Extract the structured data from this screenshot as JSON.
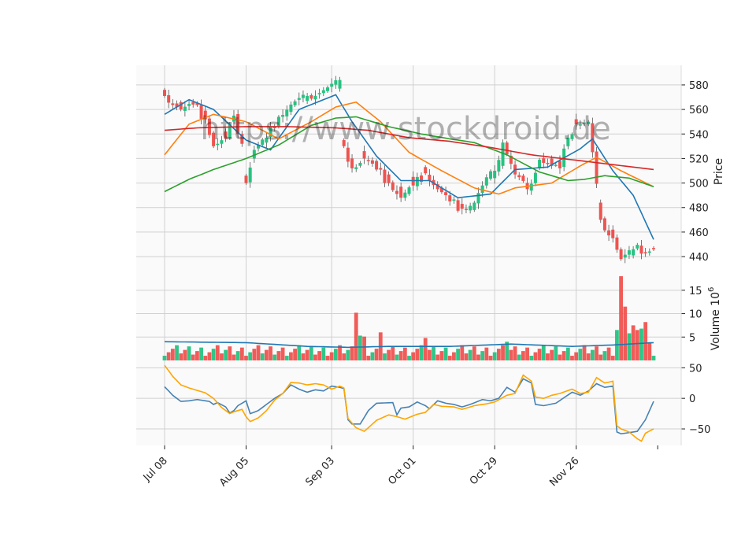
{
  "watermark": "https://www.stockdroid.de",
  "chart_data": {
    "type": "candlestick",
    "x_tick_labels": [
      "Jul 08",
      "Aug 05",
      "Sep 03",
      "Oct 01",
      "Oct 29",
      "Nov 26"
    ],
    "x_tick_bars": [
      0,
      20,
      41,
      61,
      81,
      101
    ],
    "n_bars": 121,
    "price_panel": {
      "ylabel": "Price",
      "ylim": [
        424,
        596
      ],
      "yticks": [
        440,
        460,
        480,
        500,
        520,
        540,
        560,
        580
      ],
      "ohlc_anchors": [
        [
          0,
          576,
          571
        ],
        [
          4,
          566,
          560
        ],
        [
          7,
          566,
          564
        ],
        [
          10,
          559,
          552
        ],
        [
          12,
          541,
          530
        ],
        [
          15,
          542,
          536
        ],
        [
          17,
          550,
          555
        ],
        [
          19,
          540,
          532
        ],
        [
          20,
          506,
          500
        ],
        [
          22,
          520,
          527
        ],
        [
          25,
          533,
          537
        ],
        [
          28,
          546,
          554
        ],
        [
          31,
          558,
          564
        ],
        [
          35,
          567,
          571
        ],
        [
          40,
          575,
          578
        ],
        [
          43,
          577,
          584
        ],
        [
          44,
          535,
          530
        ],
        [
          46,
          520,
          512
        ],
        [
          49,
          526,
          520
        ],
        [
          52,
          518,
          511
        ],
        [
          55,
          507,
          500
        ],
        [
          58,
          497,
          488
        ],
        [
          61,
          505,
          498
        ],
        [
          64,
          513,
          508
        ],
        [
          67,
          499,
          495
        ],
        [
          70,
          490,
          485
        ],
        [
          73,
          483,
          479
        ],
        [
          76,
          478,
          484
        ],
        [
          78,
          492,
          498
        ],
        [
          81,
          504,
          510
        ],
        [
          83,
          514,
          533
        ],
        [
          86,
          515,
          507
        ],
        [
          89,
          500,
          495
        ],
        [
          92,
          512,
          519
        ],
        [
          95,
          520,
          514
        ],
        [
          97,
          518,
          512
        ],
        [
          99,
          530,
          537
        ],
        [
          101,
          552,
          548
        ],
        [
          104,
          548,
          550
        ],
        [
          107,
          484,
          470
        ],
        [
          110,
          462,
          455
        ],
        [
          112,
          446,
          438
        ],
        [
          115,
          441,
          446
        ],
        [
          120,
          447,
          446
        ]
      ],
      "moving_averages": [
        {
          "color": "#1f77b4",
          "points": [
            [
              0,
              556
            ],
            [
              6,
              568
            ],
            [
              12,
              560
            ],
            [
              20,
              535
            ],
            [
              26,
              527
            ],
            [
              33,
              560
            ],
            [
              42,
              572
            ],
            [
              46,
              550
            ],
            [
              52,
              522
            ],
            [
              58,
              502
            ],
            [
              65,
              502
            ],
            [
              72,
              488
            ],
            [
              80,
              491
            ],
            [
              86,
              511
            ],
            [
              94,
              513
            ],
            [
              102,
              528
            ],
            [
              105,
              536
            ],
            [
              110,
              510
            ],
            [
              115,
              490
            ],
            [
              120,
              454
            ]
          ]
        },
        {
          "color": "#ff7f0e",
          "points": [
            [
              0,
              523
            ],
            [
              6,
              548
            ],
            [
              12,
              556
            ],
            [
              20,
              550
            ],
            [
              28,
              536
            ],
            [
              36,
              550
            ],
            [
              42,
              562
            ],
            [
              47,
              566
            ],
            [
              53,
              550
            ],
            [
              60,
              525
            ],
            [
              68,
              510
            ],
            [
              76,
              496
            ],
            [
              82,
              491
            ],
            [
              86,
              496
            ],
            [
              95,
              500
            ],
            [
              102,
              514
            ],
            [
              106,
              521
            ],
            [
              112,
              510
            ],
            [
              120,
              497
            ]
          ]
        },
        {
          "color": "#2ca02c",
          "points": [
            [
              0,
              493
            ],
            [
              6,
              503
            ],
            [
              12,
              511
            ],
            [
              20,
              520
            ],
            [
              28,
              531
            ],
            [
              36,
              547
            ],
            [
              42,
              553
            ],
            [
              47,
              554
            ],
            [
              55,
              546
            ],
            [
              63,
              540
            ],
            [
              70,
              536
            ],
            [
              76,
              533
            ],
            [
              84,
              523
            ],
            [
              92,
              509
            ],
            [
              99,
              502
            ],
            [
              103,
              503
            ],
            [
              108,
              506
            ],
            [
              114,
              504
            ],
            [
              120,
              497
            ]
          ]
        },
        {
          "color": "#d62728",
          "points": [
            [
              0,
              543
            ],
            [
              8,
              545
            ],
            [
              20,
              546
            ],
            [
              30,
              546
            ],
            [
              42,
              545
            ],
            [
              50,
              543
            ],
            [
              60,
              537
            ],
            [
              70,
              534
            ],
            [
              80,
              529
            ],
            [
              90,
              523
            ],
            [
              100,
              519
            ],
            [
              110,
              515
            ],
            [
              120,
              511
            ]
          ]
        }
      ]
    },
    "volume_panel": {
      "ylabel": "Volume  10^6",
      "ylim": [
        0,
        18
      ],
      "yticks": [
        5,
        10,
        15
      ],
      "spikes": [
        [
          47,
          10.2
        ],
        [
          48,
          5.3
        ],
        [
          49,
          5.1
        ],
        [
          53,
          6.0
        ],
        [
          64,
          4.8
        ],
        [
          84,
          4.0
        ],
        [
          111,
          6.5
        ],
        [
          112,
          18.0
        ],
        [
          113,
          11.5
        ],
        [
          114,
          5.8
        ],
        [
          115,
          7.5
        ],
        [
          116,
          6.5
        ],
        [
          117,
          6.8
        ],
        [
          118,
          8.2
        ],
        [
          119,
          3.9
        ]
      ],
      "baseline_range": [
        1.0,
        3.5
      ],
      "average_line": {
        "color": "#1f77b4",
        "points": [
          [
            0,
            4.0
          ],
          [
            20,
            3.8
          ],
          [
            35,
            3.0
          ],
          [
            45,
            2.8
          ],
          [
            55,
            3.0
          ],
          [
            70,
            3.0
          ],
          [
            85,
            3.5
          ],
          [
            100,
            3.0
          ],
          [
            110,
            3.3
          ],
          [
            120,
            3.8
          ]
        ]
      }
    },
    "oscillator_panel": {
      "ylim": [
        -77,
        62
      ],
      "yticks": [
        -50,
        0,
        50
      ],
      "series": [
        {
          "color": "#4682b4",
          "points": [
            [
              0,
              19
            ],
            [
              2,
              5
            ],
            [
              4,
              -5
            ],
            [
              6,
              -4
            ],
            [
              8,
              -2
            ],
            [
              11,
              -5
            ],
            [
              12,
              -10
            ],
            [
              13,
              -7
            ],
            [
              15,
              -14
            ],
            [
              16,
              -24
            ],
            [
              17,
              -20
            ],
            [
              18,
              -12
            ],
            [
              20,
              -4
            ],
            [
              21,
              -25
            ],
            [
              23,
              -20
            ],
            [
              25,
              -10
            ],
            [
              27,
              0
            ],
            [
              29,
              8
            ],
            [
              31,
              22
            ],
            [
              33,
              15
            ],
            [
              35,
              10
            ],
            [
              37,
              14
            ],
            [
              39,
              12
            ],
            [
              41,
              20
            ],
            [
              43,
              18
            ],
            [
              44,
              16
            ],
            [
              45,
              -35
            ],
            [
              46,
              -42
            ],
            [
              48,
              -42
            ],
            [
              50,
              -20
            ],
            [
              52,
              -8
            ],
            [
              56,
              -7
            ],
            [
              57,
              -27
            ],
            [
              58,
              -16
            ],
            [
              60,
              -14
            ],
            [
              62,
              -6
            ],
            [
              64,
              -12
            ],
            [
              65,
              -17
            ],
            [
              67,
              -4
            ],
            [
              69,
              -8
            ],
            [
              71,
              -10
            ],
            [
              73,
              -14
            ],
            [
              75,
              -10
            ],
            [
              78,
              -2
            ],
            [
              80,
              -4
            ],
            [
              82,
              0
            ],
            [
              84,
              18
            ],
            [
              86,
              10
            ],
            [
              88,
              32
            ],
            [
              90,
              25
            ],
            [
              91,
              -10
            ],
            [
              93,
              -12
            ],
            [
              96,
              -8
            ],
            [
              100,
              10
            ],
            [
              102,
              5
            ],
            [
              104,
              12
            ],
            [
              106,
              24
            ],
            [
              108,
              18
            ],
            [
              110,
              20
            ],
            [
              111,
              -55
            ],
            [
              112,
              -58
            ],
            [
              114,
              -56
            ],
            [
              116,
              -54
            ],
            [
              118,
              -35
            ],
            [
              120,
              -5
            ]
          ]
        },
        {
          "color": "#ffa500",
          "points": [
            [
              0,
              54
            ],
            [
              2,
              36
            ],
            [
              4,
              22
            ],
            [
              6,
              17
            ],
            [
              8,
              13
            ],
            [
              10,
              9
            ],
            [
              12,
              0
            ],
            [
              14,
              -15
            ],
            [
              16,
              -25
            ],
            [
              17,
              -22
            ],
            [
              19,
              -18
            ],
            [
              20,
              -30
            ],
            [
              21,
              -38
            ],
            [
              23,
              -32
            ],
            [
              25,
              -20
            ],
            [
              27,
              -3
            ],
            [
              29,
              8
            ],
            [
              31,
              26
            ],
            [
              33,
              25
            ],
            [
              35,
              22
            ],
            [
              37,
              24
            ],
            [
              39,
              22
            ],
            [
              41,
              15
            ],
            [
              43,
              20
            ],
            [
              44,
              17
            ],
            [
              45,
              -33
            ],
            [
              47,
              -48
            ],
            [
              49,
              -54
            ],
            [
              52,
              -36
            ],
            [
              55,
              -27
            ],
            [
              57,
              -30
            ],
            [
              59,
              -34
            ],
            [
              62,
              -26
            ],
            [
              64,
              -23
            ],
            [
              66,
              -10
            ],
            [
              68,
              -13
            ],
            [
              71,
              -14
            ],
            [
              73,
              -18
            ],
            [
              76,
              -12
            ],
            [
              79,
              -9
            ],
            [
              81,
              -6
            ],
            [
              84,
              5
            ],
            [
              86,
              8
            ],
            [
              88,
              38
            ],
            [
              90,
              28
            ],
            [
              91,
              2
            ],
            [
              93,
              0
            ],
            [
              95,
              5
            ],
            [
              97,
              8
            ],
            [
              100,
              15
            ],
            [
              102,
              8
            ],
            [
              104,
              10
            ],
            [
              106,
              34
            ],
            [
              108,
              25
            ],
            [
              110,
              28
            ],
            [
              111,
              -45
            ],
            [
              112,
              -50
            ],
            [
              114,
              -55
            ],
            [
              116,
              -66
            ],
            [
              117,
              -70
            ],
            [
              118,
              -57
            ],
            [
              120,
              -50
            ]
          ]
        }
      ]
    }
  }
}
